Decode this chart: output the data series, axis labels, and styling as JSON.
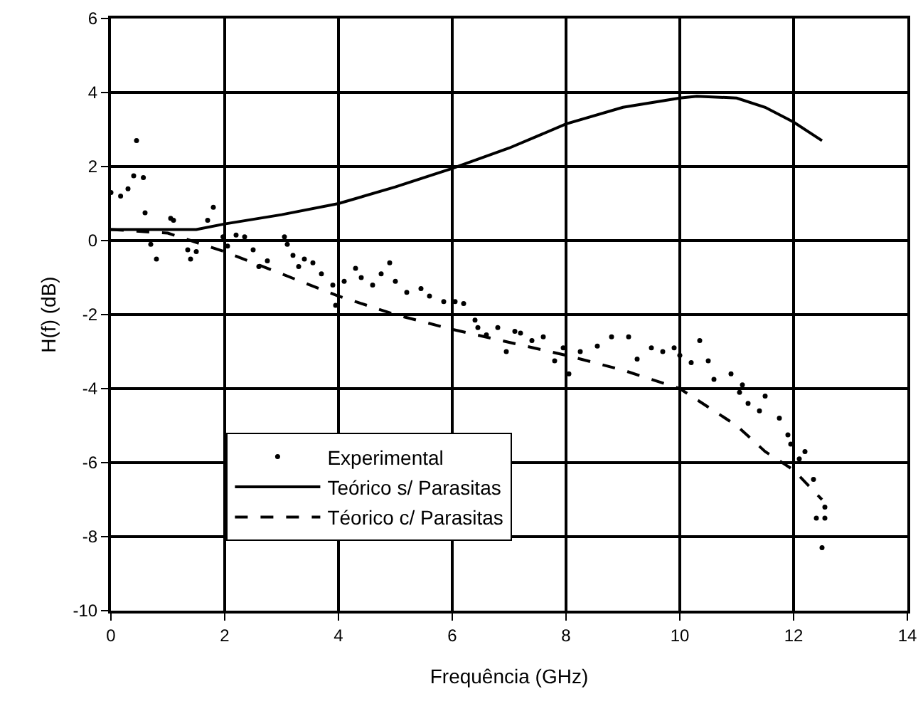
{
  "chart_data": {
    "type": "line",
    "xlabel": "Frequência (GHz)",
    "ylabel": "H(f) (dB)",
    "xlim": [
      0,
      14
    ],
    "xticks": [
      0,
      2,
      4,
      6,
      8,
      10,
      12,
      14
    ],
    "ylim": [
      -10,
      6
    ],
    "yticks": [
      -10,
      -8,
      -6,
      -4,
      -2,
      0,
      2,
      4,
      6
    ],
    "grid": true,
    "legend": "bottom left",
    "series": [
      {
        "name": "Experimental",
        "type": "scatter",
        "marker": "circle",
        "color": "#000000",
        "x": [
          0,
          0.17,
          0.3,
          0.4,
          0.45,
          0.57,
          0.6,
          0.7,
          0.8,
          1.05,
          1.1,
          1.35,
          1.4,
          1.5,
          1.7,
          1.8,
          1.97,
          2.05,
          2.2,
          2.35,
          2.5,
          2.6,
          2.75,
          3.05,
          3.1,
          3.2,
          3.3,
          3.4,
          3.55,
          3.7,
          3.9,
          3.95,
          4.1,
          4.3,
          4.4,
          4.6,
          4.75,
          4.9,
          5.0,
          5.2,
          5.45,
          5.6,
          5.85,
          6.05,
          6.2,
          6.4,
          6.45,
          6.6,
          6.8,
          6.95,
          7.1,
          7.2,
          7.4,
          7.6,
          7.8,
          7.95,
          8.05,
          8.25,
          8.55,
          8.8,
          9.1,
          9.25,
          9.5,
          9.7,
          9.9,
          10.0,
          10.2,
          10.35,
          10.5,
          10.6,
          10.9,
          11.05,
          11.1,
          11.2,
          11.4,
          11.5,
          11.75,
          11.9,
          11.95,
          12.1,
          12.2,
          12.35,
          12.4,
          12.5,
          12.55,
          12.55
        ],
        "values": [
          1.3,
          1.2,
          1.4,
          1.75,
          2.7,
          1.7,
          0.75,
          -0.1,
          -0.5,
          0.6,
          0.55,
          -0.25,
          -0.5,
          -0.3,
          0.55,
          0.9,
          0.1,
          -0.15,
          0.15,
          0.1,
          -0.25,
          -0.7,
          -0.55,
          0.1,
          -0.1,
          -0.4,
          -0.7,
          -0.5,
          -0.6,
          -0.9,
          -1.2,
          -1.75,
          -1.1,
          -0.75,
          -1.0,
          -1.2,
          -0.9,
          -0.6,
          -1.1,
          -1.4,
          -1.3,
          -1.5,
          -1.65,
          -1.65,
          -1.7,
          -2.15,
          -2.35,
          -2.55,
          -2.35,
          -3.0,
          -2.45,
          -2.5,
          -2.7,
          -2.6,
          -3.25,
          -2.9,
          -3.6,
          -3.0,
          -2.85,
          -2.6,
          -2.6,
          -3.2,
          -2.9,
          -3.0,
          -2.9,
          -3.1,
          -3.3,
          -2.7,
          -3.25,
          -3.75,
          -3.6,
          -4.1,
          -3.9,
          -4.4,
          -4.6,
          -4.2,
          -4.8,
          -5.25,
          -5.5,
          -5.9,
          -5.7,
          -6.45,
          -7.5,
          -8.3,
          -7.2,
          -7.5
        ]
      },
      {
        "name": "Teórico s/ Parasitas",
        "line_style": "solid",
        "color": "#000000",
        "x": [
          0,
          1,
          1.5,
          2,
          3,
          4,
          5,
          6,
          7,
          8,
          9,
          10,
          10.3,
          11,
          11.5,
          12,
          12.5
        ],
        "values": [
          0.3,
          0.3,
          0.3,
          0.45,
          0.7,
          1.0,
          1.45,
          1.95,
          2.5,
          3.15,
          3.6,
          3.85,
          3.9,
          3.85,
          3.6,
          3.2,
          2.7
        ]
      },
      {
        "name": "Téorico c/ Parasitas",
        "line_style": "dashed",
        "color": "#000000",
        "x": [
          0,
          1,
          2,
          3,
          4,
          5,
          6,
          7,
          8,
          9,
          10,
          10.5,
          11,
          11.5,
          12,
          12.5
        ],
        "values": [
          0.3,
          0.2,
          -0.3,
          -0.9,
          -1.5,
          -2.0,
          -2.4,
          -2.75,
          -3.1,
          -3.5,
          -4.0,
          -4.5,
          -5.0,
          -5.7,
          -6.2,
          -7.0
        ]
      }
    ]
  }
}
